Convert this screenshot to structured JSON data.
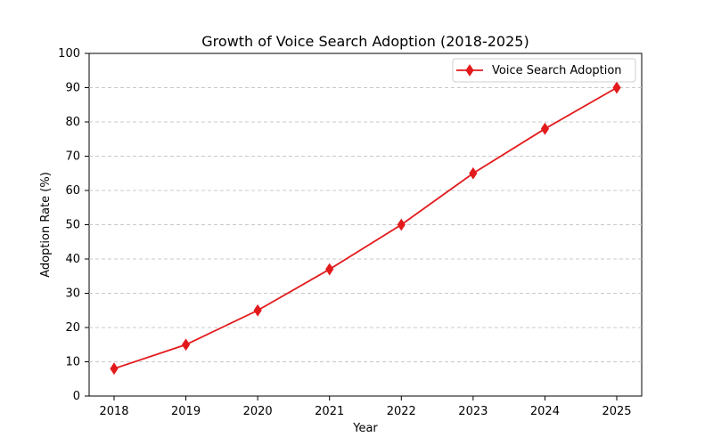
{
  "chart_data": {
    "type": "line",
    "title": "Growth of Voice Search Adoption (2018-2025)",
    "xlabel": "Year",
    "ylabel": "Adoption Rate (%)",
    "x": [
      "2018",
      "2019",
      "2020",
      "2021",
      "2022",
      "2023",
      "2024",
      "2025"
    ],
    "series": [
      {
        "name": "Voice Search Adoption",
        "values": [
          8,
          15,
          25,
          37,
          50,
          65,
          78,
          90
        ],
        "color": "#e31a1c",
        "marker": "diamond"
      }
    ],
    "ylim": [
      0,
      100
    ],
    "yticks": [
      0,
      10,
      20,
      30,
      40,
      50,
      60,
      70,
      80,
      90,
      100
    ],
    "grid": "y-dashed",
    "legend_position": "top-right"
  }
}
